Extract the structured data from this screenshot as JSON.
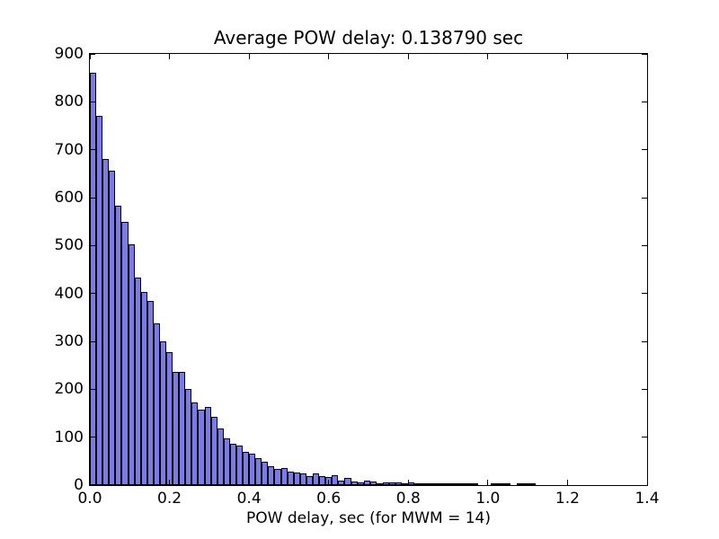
{
  "stats": {
    "average_pow_delay_sec": "0.138790",
    "mwm": 14
  },
  "chart_data": {
    "type": "histogram",
    "title": "Average POW delay: 0.138790 sec",
    "xlabel": "POW delay, sec (for MWM = 14)",
    "ylabel": "",
    "xlim": [
      0.0,
      1.4
    ],
    "ylim": [
      0,
      900
    ],
    "grid": false,
    "legend": null,
    "bin_start": 0.0,
    "bin_width": 0.016,
    "bar_color": "#7a7ae8",
    "bar_edge_color": "#000000",
    "x_tick_values": [
      0.0,
      0.2,
      0.4,
      0.6,
      0.8,
      1.0,
      1.2,
      1.4
    ],
    "x_tick_labels": [
      "0.0",
      "0.2",
      "0.4",
      "0.6",
      "0.8",
      "1.0",
      "1.2",
      "1.4"
    ],
    "y_tick_values": [
      0,
      100,
      200,
      300,
      400,
      500,
      600,
      700,
      800,
      900
    ],
    "y_tick_labels": [
      "0",
      "100",
      "200",
      "300",
      "400",
      "500",
      "600",
      "700",
      "800",
      "900"
    ],
    "values": [
      861,
      770,
      680,
      656,
      584,
      550,
      503,
      434,
      403,
      384,
      338,
      300,
      278,
      237,
      237,
      200,
      172,
      158,
      163,
      143,
      118,
      98,
      86,
      82,
      70,
      66,
      56,
      48,
      39,
      34,
      36,
      28,
      26,
      24,
      19,
      25,
      19,
      16,
      20,
      9,
      15,
      8,
      6,
      9,
      8,
      4,
      5,
      6,
      5,
      3,
      6,
      4,
      2,
      3,
      2,
      3,
      1,
      1,
      1,
      2,
      1,
      0,
      0,
      2,
      1,
      1,
      0,
      1,
      2,
      1
    ]
  }
}
